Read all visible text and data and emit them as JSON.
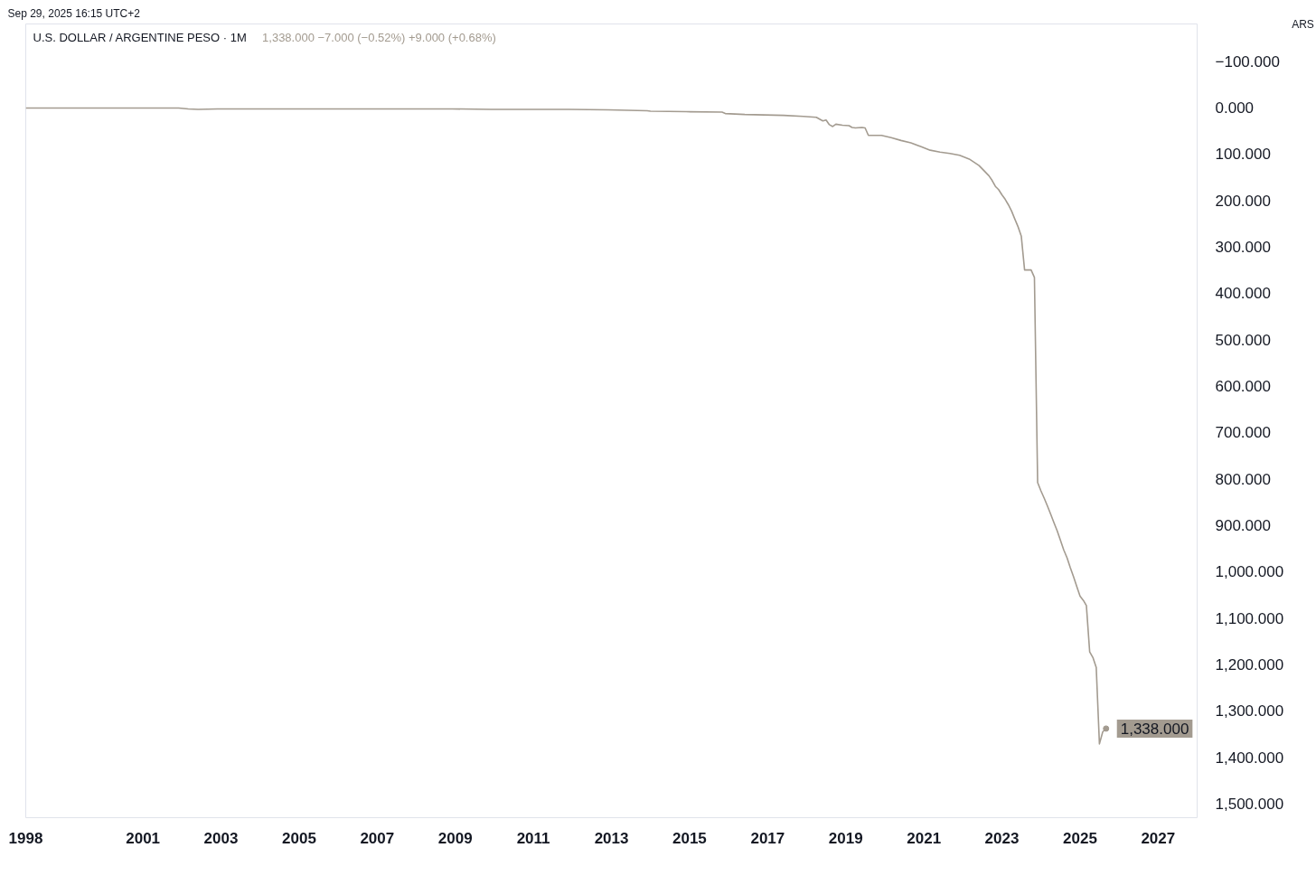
{
  "chart_data": {
    "type": "line",
    "title": "U.S. DOLLAR / ARGENTINE PESO · 1M",
    "subtitle": "1,338.000 −7.000 (−0.52%) +9.000 (+0.68%)",
    "ylabel": "ARS",
    "annotations": [
      "Sep 29, 2025 16:15 UTC+2",
      {
        "text": "1,338.000",
        "x": "2025-09",
        "y": 1338
      }
    ],
    "x": [
      "1998-01",
      "1999-01",
      "2000-01",
      "2001-01",
      "2001-12",
      "2002-03",
      "2002-06",
      "2002-12",
      "2003-12",
      "2005-12",
      "2007-12",
      "2008-12",
      "2009-12",
      "2011-12",
      "2012-12",
      "2013-12",
      "2014-01",
      "2014-12",
      "2015-11",
      "2015-12",
      "2016-06",
      "2016-12",
      "2017-06",
      "2017-12",
      "2018-04",
      "2018-05",
      "2018-06",
      "2018-07",
      "2018-08",
      "2018-09",
      "2018-10",
      "2018-12",
      "2019-02",
      "2019-03",
      "2019-04",
      "2019-06",
      "2019-07",
      "2019-08",
      "2019-12",
      "2020-03",
      "2020-06",
      "2020-09",
      "2020-12",
      "2021-03",
      "2021-06",
      "2021-09",
      "2021-12",
      "2022-03",
      "2022-06",
      "2022-09",
      "2022-10",
      "2022-11",
      "2022-12",
      "2023-01",
      "2023-02",
      "2023-03",
      "2023-04",
      "2023-05",
      "2023-06",
      "2023-07",
      "2023-08",
      "2023-09",
      "2023-10",
      "2023-11",
      "2023-12",
      "2024-01",
      "2024-02",
      "2024-03",
      "2024-04",
      "2024-05",
      "2024-06",
      "2024-07",
      "2024-08",
      "2024-09",
      "2024-10",
      "2024-11",
      "2024-12",
      "2025-01",
      "2025-02",
      "2025-03",
      "2025-04",
      "2025-05",
      "2025-06",
      "2025-07",
      "2025-08",
      "2025-09"
    ],
    "series": [
      {
        "color": "#a39b90",
        "values": [
          1,
          1,
          1,
          1,
          1,
          3,
          4,
          3,
          3,
          3,
          3,
          3,
          4,
          4,
          5,
          7,
          8,
          9,
          10,
          13,
          15,
          16,
          17,
          19,
          21,
          25,
          29,
          27,
          37,
          41,
          36,
          38,
          39,
          43,
          44,
          43,
          44,
          60,
          60,
          65,
          71,
          76,
          84,
          92,
          96,
          99,
          103,
          111,
          125,
          147,
          157,
          170,
          177,
          188,
          198,
          209,
          223,
          240,
          257,
          277,
          350,
          350,
          350,
          366,
          808,
          826,
          842,
          858,
          876,
          894,
          912,
          932,
          953,
          970,
          991,
          1011,
          1032,
          1053,
          1062,
          1073,
          1173,
          1185,
          1206,
          1371,
          1345,
          1338
        ]
      }
    ],
    "xlim": [
      "1998-01",
      "2028-01"
    ],
    "ylim": [
      1530,
      -180
    ],
    "xticks": [
      "1998",
      "2001",
      "2003",
      "2005",
      "2007",
      "2009",
      "2011",
      "2013",
      "2015",
      "2017",
      "2019",
      "2021",
      "2023",
      "2025",
      "2027"
    ],
    "yticks": [
      {
        "value": -100,
        "label": "−100.000"
      },
      {
        "value": 0,
        "label": "0.000"
      },
      {
        "value": 100,
        "label": "100.000"
      },
      {
        "value": 200,
        "label": "200.000"
      },
      {
        "value": 300,
        "label": "300.000"
      },
      {
        "value": 400,
        "label": "400.000"
      },
      {
        "value": 500,
        "label": "500.000"
      },
      {
        "value": 600,
        "label": "600.000"
      },
      {
        "value": 700,
        "label": "700.000"
      },
      {
        "value": 800,
        "label": "800.000"
      },
      {
        "value": 900,
        "label": "900.000"
      },
      {
        "value": 1000,
        "label": "1,000.000"
      },
      {
        "value": 1100,
        "label": "1,100.000"
      },
      {
        "value": 1200,
        "label": "1,200.000"
      },
      {
        "value": 1300,
        "label": "1,300.000"
      },
      {
        "value": 1400,
        "label": "1,400.000"
      },
      {
        "value": 1500,
        "label": "1,500.000"
      }
    ],
    "grid": false,
    "marker": "none",
    "line_style": "solid"
  }
}
